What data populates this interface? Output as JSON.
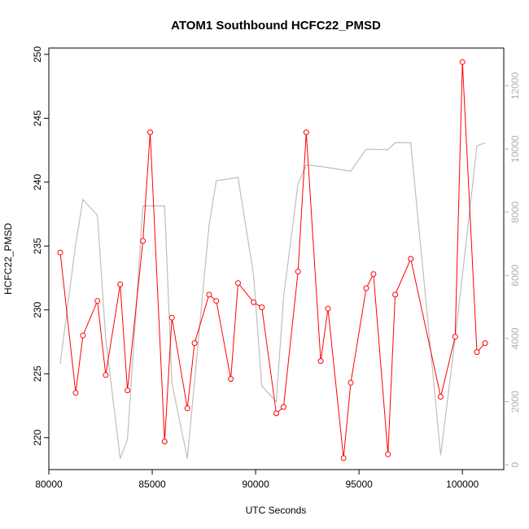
{
  "chart_data": {
    "type": "line",
    "title": "ATOM1 Southbound HCFC22_PMSD",
    "xlabel": "UTC Seconds",
    "ylabel": "HCFC22_PMSD",
    "xlim": [
      80000,
      102000
    ],
    "ylim": [
      217.5,
      250.5
    ],
    "y2lim": [
      -150,
      13200
    ],
    "x_ticks": [
      80000,
      85000,
      90000,
      95000,
      100000
    ],
    "y_ticks": [
      220,
      225,
      230,
      235,
      240,
      245,
      250
    ],
    "y2_ticks": [
      0,
      2000,
      4000,
      6000,
      8000,
      10000,
      12000
    ],
    "grid": false,
    "colors": {
      "primary": "#ff0000",
      "secondary": "#bebebe"
    },
    "series": [
      {
        "axis": "left",
        "style": "line+points",
        "x": [
          80550,
          81300,
          81650,
          82350,
          82750,
          83450,
          83800,
          84550,
          84900,
          85600,
          85950,
          86700,
          87050,
          87750,
          88100,
          88800,
          89150,
          89900,
          90300,
          91000,
          91350,
          92050,
          92450,
          93150,
          93500,
          94250,
          94600,
          95350,
          95700,
          96400,
          96750,
          97500,
          98950,
          99650,
          100000,
          100700,
          101100
        ],
        "y": [
          234.5,
          223.5,
          228.0,
          230.7,
          224.9,
          232.0,
          223.7,
          235.4,
          243.9,
          219.7,
          229.4,
          222.3,
          227.4,
          231.2,
          230.7,
          224.6,
          232.1,
          230.6,
          230.2,
          221.9,
          222.4,
          233.0,
          243.9,
          226.0,
          230.1,
          218.4,
          224.3,
          231.7,
          232.8,
          218.7,
          231.2,
          234.0,
          223.2,
          227.9,
          249.4,
          226.7,
          227.4
        ]
      },
      {
        "axis": "right",
        "style": "line",
        "x": [
          80550,
          81300,
          81650,
          82350,
          82750,
          83450,
          83800,
          84550,
          85600,
          85950,
          86700,
          87750,
          88100,
          89150,
          89900,
          90300,
          91000,
          91350,
          92050,
          92450,
          93150,
          94600,
          95350,
          96400,
          96750,
          97500,
          98950,
          99650,
          100000,
          100700,
          101100
        ],
        "y": [
          3200,
          7000,
          8400,
          7900,
          4000,
          200,
          800,
          8200,
          8200,
          2600,
          200,
          7600,
          9000,
          9100,
          6000,
          2500,
          2000,
          5300,
          8900,
          9500,
          9450,
          9300,
          10000,
          9980,
          10200,
          10200,
          300,
          4000,
          6000,
          10100,
          10200
        ]
      }
    ]
  }
}
